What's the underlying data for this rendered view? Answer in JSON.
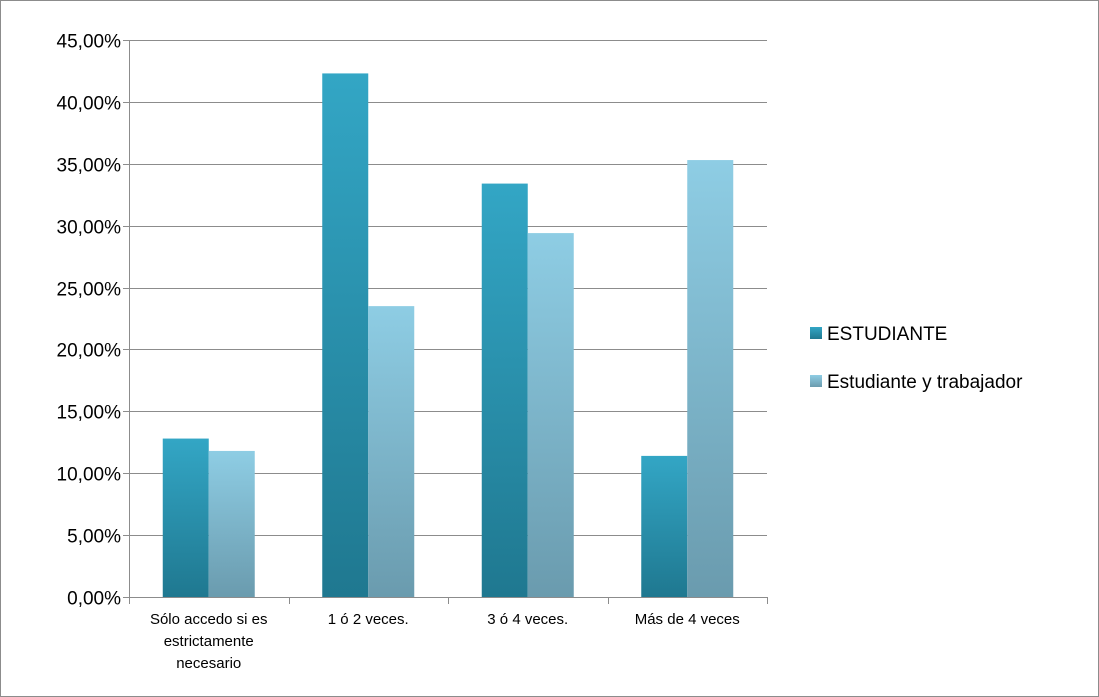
{
  "chart_data": {
    "type": "bar",
    "categories": [
      [
        "Sólo accedo si es",
        "estrictamente",
        "necesario"
      ],
      [
        "1 ó 2 veces."
      ],
      [
        "3 ó 4 veces."
      ],
      [
        "Más de 4 veces"
      ]
    ],
    "series": [
      {
        "name": "ESTUDIANTE",
        "values": [
          12.8,
          42.3,
          33.4,
          11.4
        ],
        "color_top": "#33A6C5",
        "color_bottom": "#1F7890"
      },
      {
        "name": "Estudiante y trabajador",
        "values": [
          11.8,
          23.5,
          29.4,
          35.3
        ],
        "color_top": "#8ECDE4",
        "color_bottom": "#6A9BAE"
      }
    ],
    "ylim": [
      0,
      45
    ],
    "yticks": [
      "0,00%",
      "5,00%",
      "10,00%",
      "15,00%",
      "20,00%",
      "25,00%",
      "30,00%",
      "35,00%",
      "40,00%",
      "45,00%"
    ],
    "grid": true,
    "legend_position": "right",
    "title": "",
    "xlabel": "",
    "ylabel": ""
  }
}
